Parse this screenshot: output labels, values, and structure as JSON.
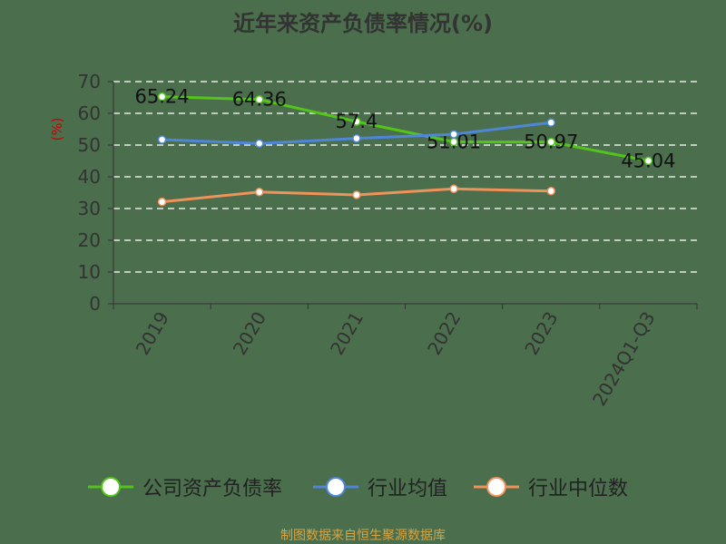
{
  "chart_data": {
    "type": "line",
    "title": "近年来资产负债率情况(%)",
    "ylabel": "(%)",
    "xlabel": "",
    "ylim": [
      0,
      70
    ],
    "yticks": [
      "0",
      "10",
      "20",
      "30",
      "40",
      "50",
      "60",
      "70"
    ],
    "categories": [
      "2019",
      "2020",
      "2021",
      "2022",
      "2023",
      "2024Q1-Q3"
    ],
    "grid": true,
    "legend_position": "bottom",
    "series": [
      {
        "name": "公司资产负债率",
        "color": "#52c41a",
        "values": [
          65.24,
          64.36,
          57.4,
          51.01,
          50.97,
          45.04
        ],
        "labels": [
          "65.24",
          "64.36",
          "57.4",
          "51.01",
          "50.97",
          "45.04"
        ]
      },
      {
        "name": "行业均值",
        "color": "#4f86d9",
        "values": [
          51.7,
          50.5,
          52.1,
          53.4,
          57.1,
          null
        ]
      },
      {
        "name": "行业中位数",
        "color": "#f0925a",
        "values": [
          32.1,
          35.2,
          34.3,
          36.2,
          35.5,
          null
        ]
      }
    ]
  },
  "footer": "制图数据来自恒生聚源数据库"
}
